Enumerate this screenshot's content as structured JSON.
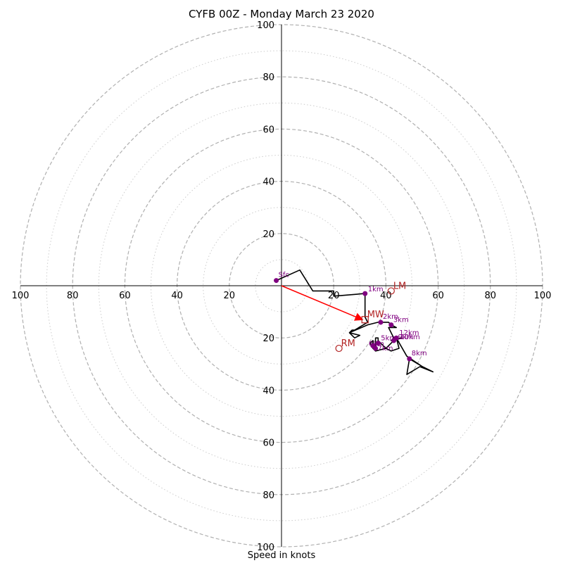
{
  "chart_data": {
    "type": "hodograph",
    "title": "CYFB 00Z - Monday March 23 2020",
    "xlabel": "Speed in knots",
    "units": "knots",
    "range_max": 100,
    "major_ring_step": 20,
    "minor_ring_step": 10,
    "grid": true,
    "x_tick_labels": [
      "100",
      "80",
      "60",
      "40",
      "20",
      "20",
      "40",
      "60",
      "80",
      "100"
    ],
    "y_tick_labels": [
      "100",
      "80",
      "60",
      "40",
      "20",
      "20",
      "40",
      "60",
      "80",
      "100"
    ],
    "colors": {
      "trace": "#000000",
      "height_marker": "#800080",
      "motion_marker": "#b22222",
      "mean_wind_vector": "#ff0000",
      "major_grid": "#b0b0b0",
      "minor_grid": "#cccccc"
    },
    "trace": [
      [
        -2,
        2
      ],
      [
        7,
        6
      ],
      [
        12,
        -2
      ],
      [
        20,
        -2
      ],
      [
        20,
        -4
      ],
      [
        32,
        -3
      ],
      [
        32,
        -8
      ],
      [
        32,
        -11
      ],
      [
        32,
        -12
      ],
      [
        33,
        -14
      ],
      [
        28,
        -17
      ],
      [
        27,
        -17
      ],
      [
        26,
        -18
      ],
      [
        30,
        -19
      ],
      [
        28,
        -20
      ],
      [
        26,
        -18
      ],
      [
        33,
        -15
      ],
      [
        37,
        -14
      ],
      [
        38,
        -14
      ],
      [
        41,
        -14
      ],
      [
        42,
        -15
      ],
      [
        44,
        -16
      ],
      [
        41,
        -16
      ],
      [
        43,
        -20
      ],
      [
        42,
        -21
      ],
      [
        46,
        -20
      ],
      [
        43,
        -21
      ],
      [
        41,
        -23
      ],
      [
        40,
        -24
      ],
      [
        39,
        -23
      ],
      [
        37,
        -21
      ],
      [
        37,
        -20
      ],
      [
        36,
        -20
      ],
      [
        36,
        -23
      ],
      [
        35,
        -24
      ],
      [
        34,
        -22
      ],
      [
        35,
        -21
      ],
      [
        35,
        -24
      ],
      [
        36,
        -25
      ],
      [
        40,
        -24
      ],
      [
        42,
        -25
      ],
      [
        45,
        -24
      ],
      [
        44,
        -20
      ],
      [
        48,
        -27
      ],
      [
        54,
        -31
      ],
      [
        58,
        -33
      ],
      [
        53,
        -31
      ],
      [
        48,
        -34
      ],
      [
        49,
        -28
      ],
      [
        54,
        -31
      ]
    ],
    "height_markers": [
      {
        "label": "Sfc",
        "u": -2,
        "v": 2
      },
      {
        "label": "1km",
        "u": 32,
        "v": -3
      },
      {
        "label": "2km",
        "u": 38,
        "v": -14
      },
      {
        "label": "3km",
        "u": 42,
        "v": -15
      },
      {
        "label": "5km",
        "u": 37,
        "v": -22
      },
      {
        "label": "6km",
        "u": 35,
        "v": -23
      },
      {
        "label": "7km",
        "u": 36,
        "v": -24
      },
      {
        "label": "8km",
        "u": 49,
        "v": -28
      },
      {
        "label": "9km",
        "u": 43,
        "v": -21
      },
      {
        "label": "10km",
        "u": 43,
        "v": -21
      },
      {
        "label": "12km",
        "u": 44,
        "v": -20
      }
    ],
    "motion_markers": [
      {
        "label": "LM",
        "u": 42,
        "v": -2,
        "shape": "circle"
      },
      {
        "label": "RM",
        "u": 22,
        "v": -24,
        "shape": "circle"
      },
      {
        "label": "MW",
        "u": 32,
        "v": -13,
        "shape": "square"
      }
    ],
    "mean_wind_vector": {
      "u": 31,
      "v": -13
    }
  }
}
